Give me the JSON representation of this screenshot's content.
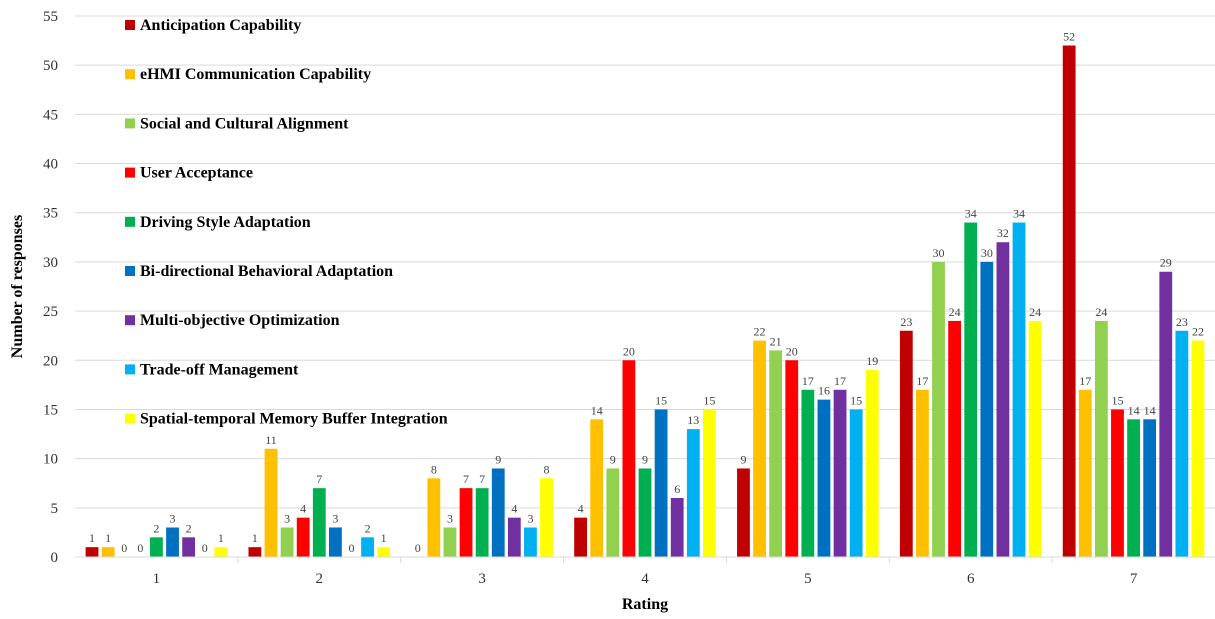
{
  "chart_data": {
    "type": "bar",
    "xlabel": "Rating",
    "ylabel": "Number of responses",
    "categories": [
      "1",
      "2",
      "3",
      "4",
      "5",
      "6",
      "7"
    ],
    "ylim": [
      0,
      55
    ],
    "yticks": [
      0,
      5,
      10,
      15,
      20,
      25,
      30,
      35,
      40,
      45,
      50,
      55
    ],
    "grid": true,
    "legend_position": "top-left",
    "series": [
      {
        "name": "Anticipation Capability",
        "color": "#C00000",
        "values": [
          1,
          1,
          null,
          4,
          9,
          23,
          52
        ]
      },
      {
        "name": "eHMI Communication Capability",
        "color": "#FFC000",
        "values": [
          1,
          11,
          8,
          14,
          22,
          17,
          17
        ]
      },
      {
        "name": "Social and Cultural Alignment",
        "color": "#92D050",
        "values": [
          0,
          3,
          3,
          9,
          21,
          30,
          24
        ]
      },
      {
        "name": "User Acceptance",
        "color": "#FF0000",
        "values": [
          0,
          4,
          7,
          20,
          20,
          24,
          15
        ]
      },
      {
        "name": "Driving Style Adaptation",
        "color": "#00B050",
        "values": [
          2,
          7,
          7,
          9,
          17,
          34,
          14
        ]
      },
      {
        "name": "Bi-directional Behavioral Adaptation",
        "color": "#0070C0",
        "values": [
          3,
          3,
          9,
          15,
          16,
          30,
          14
        ]
      },
      {
        "name": "Multi-objective Optimization",
        "color": "#7030A0",
        "values": [
          2,
          0,
          4,
          6,
          17,
          32,
          29
        ]
      },
      {
        "name": "Trade-off Management",
        "color": "#00B0F0",
        "values": [
          0,
          2,
          3,
          13,
          15,
          34,
          23
        ]
      },
      {
        "name": "Spatial-temporal Memory Buffer Integration",
        "color": "#FFFF00",
        "values": [
          1,
          1,
          8,
          15,
          19,
          24,
          22
        ]
      }
    ],
    "extra_labels": [
      {
        "category": "3",
        "text": "0"
      }
    ]
  }
}
